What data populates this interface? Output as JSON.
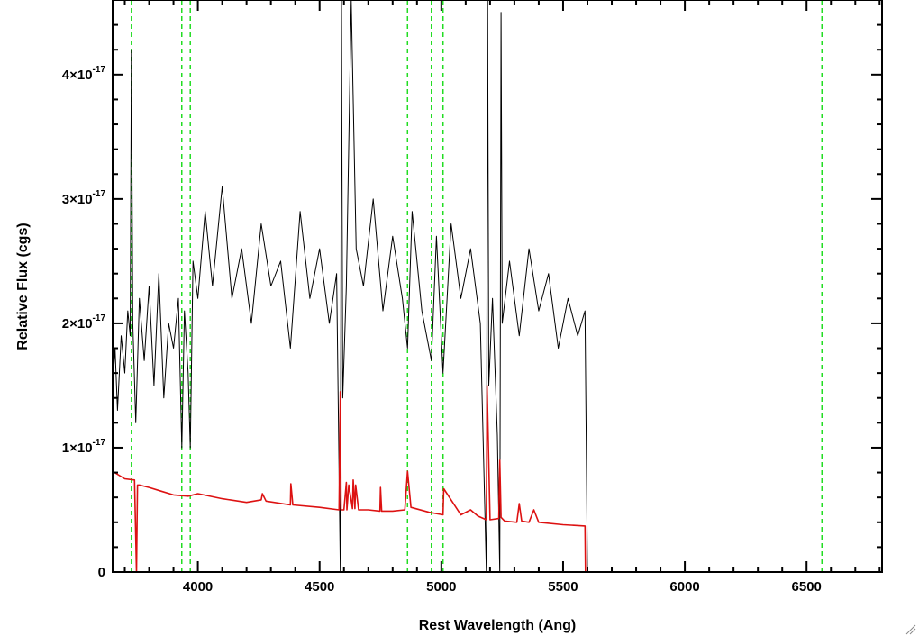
{
  "chart_data": {
    "type": "line",
    "xlabel": "Rest Wavelength (Ang)",
    "ylabel": "Relative Flux (cgs)",
    "xlim": [
      3650,
      6810
    ],
    "ylim": [
      0,
      4.6e-17
    ],
    "x_ticks": [
      {
        "value": 4000,
        "label": "4000"
      },
      {
        "value": 4500,
        "label": "4500"
      },
      {
        "value": 5000,
        "label": "5000"
      },
      {
        "value": 5500,
        "label": "5500"
      },
      {
        "value": 6000,
        "label": "6000"
      },
      {
        "value": 6500,
        "label": "6500"
      }
    ],
    "y_ticks": [
      {
        "value": 0,
        "mantissa": "0",
        "exponent": ""
      },
      {
        "value": 1e-17,
        "mantissa": "1×10",
        "exponent": "-17"
      },
      {
        "value": 2e-17,
        "mantissa": "2×10",
        "exponent": "-17"
      },
      {
        "value": 3e-17,
        "mantissa": "3×10",
        "exponent": "-17"
      },
      {
        "value": 4e-17,
        "mantissa": "4×10",
        "exponent": "-17"
      }
    ],
    "grid": false,
    "colors": {
      "observed": "#000000",
      "model": "#dd1111",
      "lines": "#22dd22"
    },
    "reference_lines_x": [
      3727,
      3934,
      3969,
      4861,
      4959,
      5007,
      6563
    ],
    "series": [
      {
        "color": "#000000",
        "x": [
          3650,
          3660,
          3670,
          3685,
          3700,
          3712,
          3722,
          3727,
          3733,
          3745,
          3760,
          3780,
          3800,
          3820,
          3840,
          3860,
          3880,
          3900,
          3920,
          3934,
          3945,
          3960,
          3969,
          3980,
          4000,
          4030,
          4060,
          4100,
          4140,
          4180,
          4220,
          4260,
          4300,
          4340,
          4380,
          4420,
          4460,
          4500,
          4540,
          4570,
          4585,
          4590,
          4595,
          4610,
          4630,
          4650,
          4680,
          4720,
          4760,
          4800,
          4840,
          4861,
          4880,
          4920,
          4959,
          4980,
          5007,
          5040,
          5080,
          5120,
          5160,
          5185,
          5190,
          5195,
          5210,
          5230,
          5240,
          5245,
          5250,
          5280,
          5320,
          5360,
          5400,
          5440,
          5480,
          5520,
          5560,
          5590,
          5600,
          5700,
          5900,
          6100,
          6300,
          6500,
          6700,
          6810
        ],
        "y": [
          1.5e-17,
          1.8e-17,
          1.3e-17,
          1.9e-17,
          1.6e-17,
          2.1e-17,
          1.9e-17,
          4.2e-17,
          2e-17,
          1.2e-17,
          2.2e-17,
          1.7e-17,
          2.3e-17,
          1.5e-17,
          2.4e-17,
          1.4e-17,
          2e-17,
          1.8e-17,
          2.2e-17,
          1e-17,
          2.1e-17,
          1.6e-17,
          1e-17,
          2.5e-17,
          2.2e-17,
          2.9e-17,
          2.3e-17,
          3.1e-17,
          2.2e-17,
          2.6e-17,
          2e-17,
          2.8e-17,
          2.3e-17,
          2.5e-17,
          1.8e-17,
          2.9e-17,
          2.2e-17,
          2.6e-17,
          2e-17,
          2.4e-17,
          0.0,
          4.6e-17,
          1.4e-17,
          2.3e-17,
          4.6e-17,
          2.6e-17,
          2.3e-17,
          3e-17,
          2.1e-17,
          2.7e-17,
          2.2e-17,
          1.8e-17,
          2.9e-17,
          2.1e-17,
          1.7e-17,
          2.7e-17,
          1.6e-17,
          2.8e-17,
          2.2e-17,
          2.6e-17,
          2e-17,
          0.0,
          4.6e-17,
          1.5e-17,
          2.2e-17,
          1.1e-17,
          0.0,
          4.5e-17,
          2e-17,
          2.5e-17,
          1.9e-17,
          2.6e-17,
          2.1e-17,
          2.4e-17,
          1.8e-17,
          2.2e-17,
          1.9e-17,
          2.1e-17,
          0.0,
          0.0,
          0.0,
          0.0,
          0.0,
          0.0,
          0.0,
          0.0
        ]
      },
      {
        "color": "#dd1111",
        "x": [
          3650,
          3700,
          3740,
          3748,
          3752,
          3760,
          3800,
          3850,
          3900,
          3960,
          4000,
          4100,
          4200,
          4260,
          4265,
          4280,
          4380,
          4382,
          4390,
          4500,
          4580,
          4585,
          4588,
          4600,
          4610,
          4612,
          4620,
          4635,
          4638,
          4645,
          4648,
          4660,
          4700,
          4748,
          4750,
          4755,
          4800,
          4850,
          4861,
          4875,
          4950,
          5007,
          5010,
          5080,
          5120,
          5150,
          5185,
          5188,
          5200,
          5236,
          5240,
          5245,
          5260,
          5310,
          5320,
          5330,
          5360,
          5380,
          5400,
          5500,
          5590,
          5592,
          5600,
          5800,
          6000,
          6200,
          6400,
          6600,
          6810
        ],
        "y": [
          8.1e-18,
          7.5e-18,
          7.4e-18,
          0.0,
          7e-18,
          7e-18,
          6.8e-18,
          6.5e-18,
          6.2e-18,
          6.1e-18,
          6.3e-18,
          5.9e-18,
          5.6e-18,
          5.8e-18,
          6.3e-18,
          5.7e-18,
          5.4e-18,
          7.1e-18,
          5.4e-18,
          5.2e-18,
          5e-18,
          1.45e-17,
          5e-18,
          5e-18,
          7.2e-18,
          5e-18,
          7e-18,
          5.1e-18,
          7.4e-18,
          5.1e-18,
          7e-18,
          5e-18,
          5e-18,
          4.9e-18,
          6.8e-18,
          4.9e-18,
          4.9e-18,
          5e-18,
          8.1e-18,
          5.2e-18,
          4.8e-18,
          4.6e-18,
          6.7e-18,
          4.6e-18,
          5e-18,
          4.5e-18,
          4.2e-18,
          1.5e-17,
          4.2e-18,
          4.3e-18,
          9e-18,
          4.4e-18,
          4.1e-18,
          4e-18,
          5.5e-18,
          4.1e-18,
          4e-18,
          5e-18,
          4e-18,
          3.8e-18,
          3.7e-18,
          0.0,
          0.0,
          0.0,
          0.0,
          0.0,
          0.0,
          0.0,
          0.0
        ]
      }
    ]
  }
}
